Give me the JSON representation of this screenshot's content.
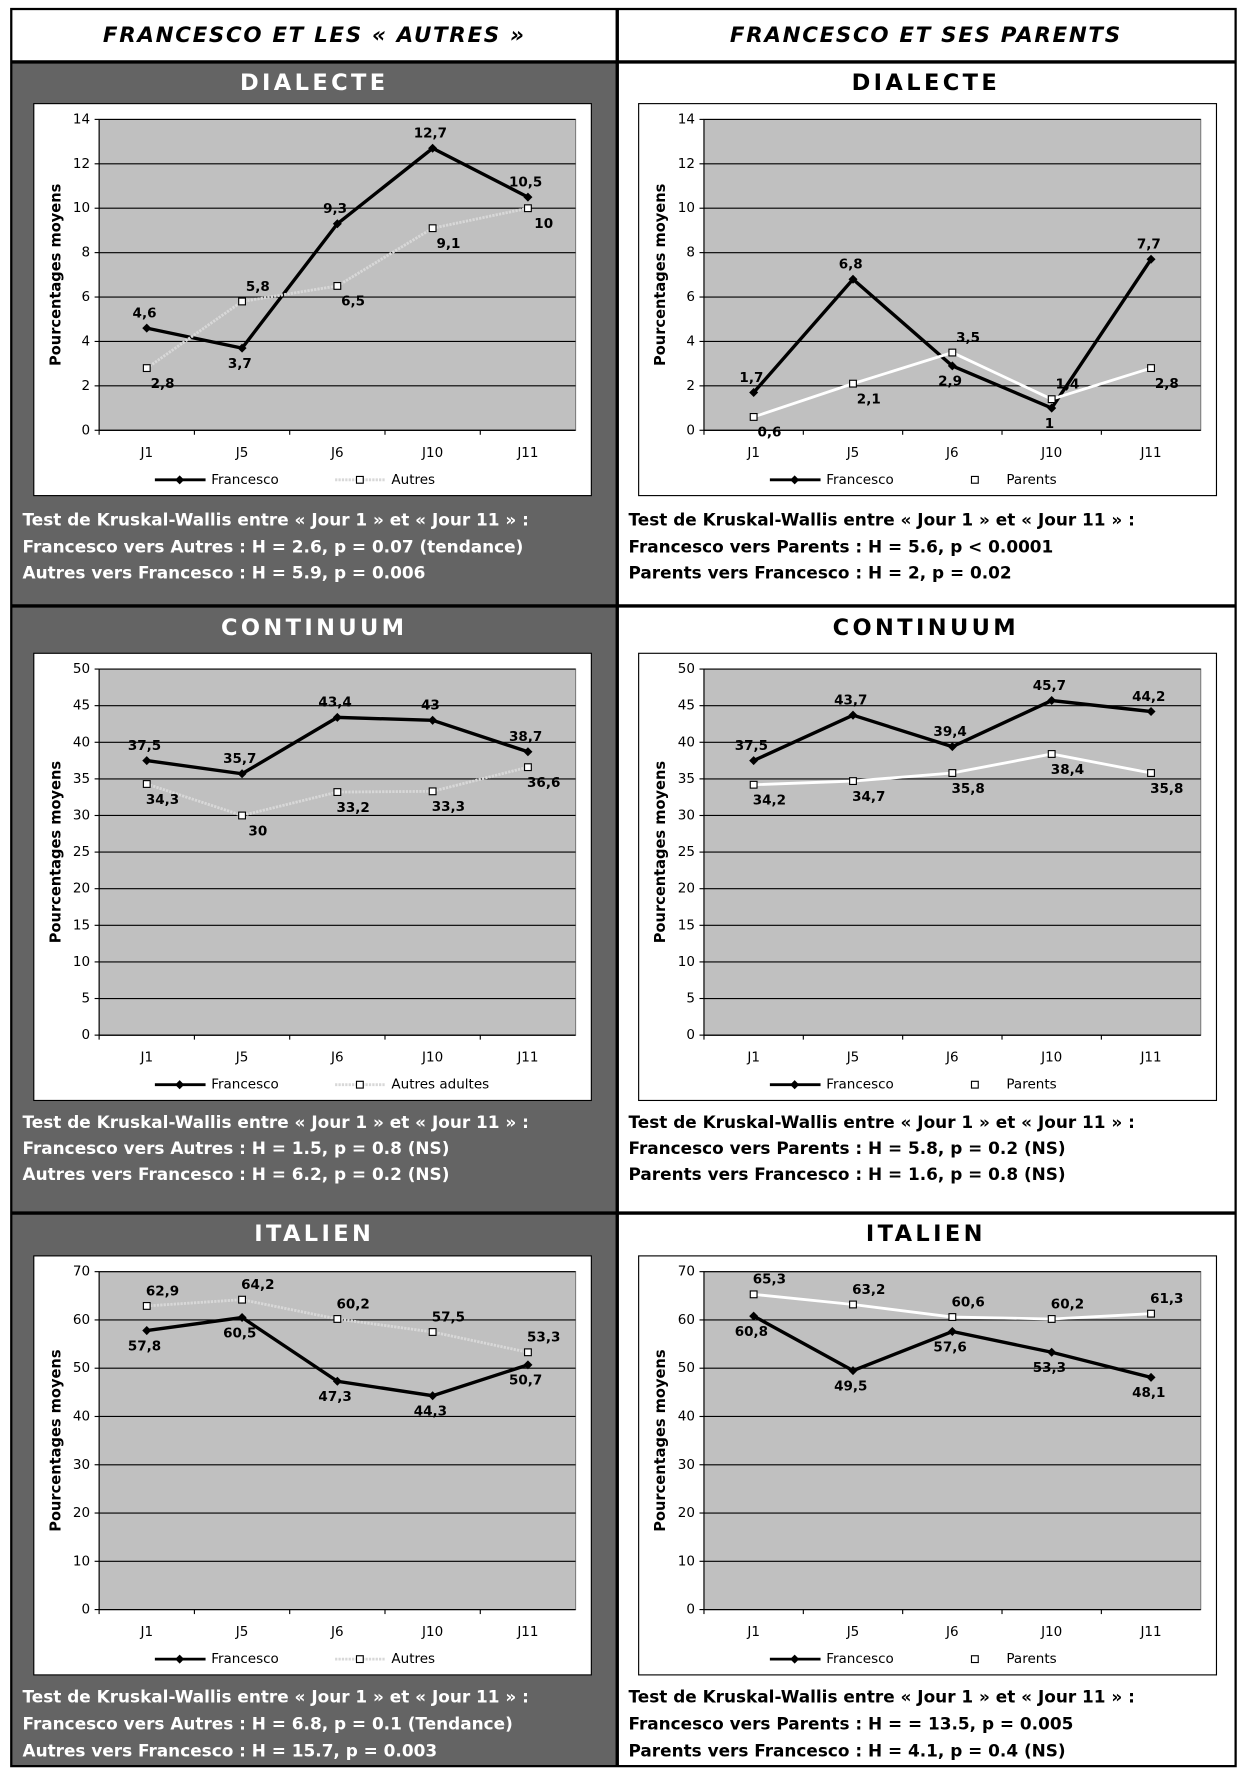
{
  "headers": [
    "FRANCESCO ET LES « AUTRES »",
    "FRANCESCO ET SES PARENTS"
  ],
  "chart_data": [
    {
      "type": "line",
      "title": "DIALECTE",
      "ylabel": "Pourcentages moyens",
      "categories": [
        "J1",
        "J5",
        "J6",
        "J10",
        "J11"
      ],
      "series": [
        {
          "name": "Francesco",
          "color": "#000000",
          "values": [
            4.6,
            3.7,
            9.3,
            12.7,
            10.5
          ],
          "value_labels": [
            "4,6",
            "3,7",
            "9,3",
            "12,7",
            "10,5"
          ]
        },
        {
          "name": "Autres",
          "color": "#d8d8d8",
          "linestyle": "dotted",
          "values": [
            2.8,
            5.8,
            6.5,
            9.1,
            10
          ],
          "value_labels": [
            "2,8",
            "5,8",
            "6,5",
            "9,1",
            "10"
          ]
        }
      ],
      "ylim": [
        0,
        14
      ],
      "yticks": [
        0,
        2,
        4,
        6,
        8,
        10,
        12,
        14
      ],
      "grid": true,
      "notes": [
        "Test de Kruskal-Wallis entre « Jour 1 » et « Jour 11 » :",
        "Francesco vers Autres : H = 2.6, p = 0.07 (tendance)",
        "Autres vers Francesco : H = 5.9, p = 0.006"
      ]
    },
    {
      "type": "line",
      "title": "CONTINUUM",
      "ylabel": "Pourcentages moyens",
      "categories": [
        "J1",
        "J5",
        "J6",
        "J10",
        "J11"
      ],
      "series": [
        {
          "name": "Francesco",
          "color": "#000000",
          "values": [
            37.5,
            35.7,
            43.4,
            43,
            38.7
          ],
          "value_labels": [
            "37,5",
            "35,7",
            "43,4",
            "43",
            "38,7"
          ]
        },
        {
          "name": "Autres adultes",
          "color": "#d8d8d8",
          "linestyle": "dotted",
          "values": [
            34.3,
            30,
            33.2,
            33.3,
            36.6
          ],
          "value_labels": [
            "34,3",
            "30",
            "33,2",
            "33,3",
            "36,6"
          ]
        }
      ],
      "ylim": [
        0,
        50
      ],
      "yticks": [
        0,
        5,
        10,
        15,
        20,
        25,
        30,
        35,
        40,
        45,
        50
      ],
      "grid": true,
      "notes": [
        "Test de Kruskal-Wallis entre « Jour 1 » et « Jour 11 » :",
        "Francesco vers Autres : H = 1.5, p = 0.8 (NS)",
        "Autres vers Francesco : H = 6.2, p = 0.2 (NS)"
      ]
    },
    {
      "type": "line",
      "title": "ITALIEN",
      "ylabel": "Pourcentages moyens",
      "categories": [
        "J1",
        "J5",
        "J6",
        "J10",
        "J11"
      ],
      "series": [
        {
          "name": "Francesco",
          "color": "#000000",
          "values": [
            57.8,
            60.5,
            47.3,
            44.3,
            50.7
          ],
          "value_labels": [
            "57,8",
            "60,5",
            "47,3",
            "44,3",
            "50,7"
          ]
        },
        {
          "name": "Autres",
          "color": "#d8d8d8",
          "linestyle": "dotted",
          "values": [
            62.9,
            64.2,
            60.2,
            57.5,
            53.3
          ],
          "value_labels": [
            "62,9",
            "64,2",
            "60,2",
            "57,5",
            "53,3"
          ]
        }
      ],
      "ylim": [
        0,
        70
      ],
      "yticks": [
        0,
        10,
        20,
        30,
        40,
        50,
        60,
        70
      ],
      "grid": true,
      "notes": [
        "Test de Kruskal-Wallis entre « Jour 1 » et « Jour 11 » :",
        "Francesco vers Autres : H = 6.8, p = 0.1 (Tendance)",
        "Autres vers Francesco : H = 15.7, p = 0.003"
      ]
    },
    {
      "type": "line",
      "title": "DIALECTE",
      "ylabel": "Pourcentages moyens",
      "categories": [
        "J1",
        "J5",
        "J6",
        "J10",
        "J11"
      ],
      "series": [
        {
          "name": "Francesco",
          "color": "#000000",
          "values": [
            1.7,
            6.8,
            2.9,
            1,
            7.7
          ],
          "value_labels": [
            "1,7",
            "6,8",
            "2,9",
            "1",
            "7,7"
          ]
        },
        {
          "name": "Parents",
          "color": "#ffffff",
          "values": [
            0.6,
            2.1,
            3.5,
            1.4,
            2.8
          ],
          "value_labels": [
            "0,6",
            "2,1",
            "3,5",
            "1,4",
            "2,8"
          ]
        }
      ],
      "ylim": [
        0,
        14
      ],
      "yticks": [
        0,
        2,
        4,
        6,
        8,
        10,
        12,
        14
      ],
      "grid": true,
      "notes": [
        "Test de Kruskal-Wallis entre « Jour 1 » et « Jour 11 » :",
        "Francesco vers Parents : H = 5.6, p < 0.0001",
        "Parents vers Francesco : H = 2, p = 0.02"
      ]
    },
    {
      "type": "line",
      "title": "CONTINUUM",
      "ylabel": "Pourcentages moyens",
      "categories": [
        "J1",
        "J5",
        "J6",
        "J10",
        "J11"
      ],
      "series": [
        {
          "name": "Francesco",
          "color": "#000000",
          "values": [
            37.5,
            43.7,
            39.4,
            45.7,
            44.2
          ],
          "value_labels": [
            "37,5",
            "43,7",
            "39,4",
            "45,7",
            "44,2"
          ]
        },
        {
          "name": "Parents",
          "color": "#ffffff",
          "values": [
            34.2,
            34.7,
            35.8,
            38.4,
            35.8
          ],
          "value_labels": [
            "34,2",
            "34,7",
            "35,8",
            "38,4",
            "35,8"
          ]
        }
      ],
      "ylim": [
        0,
        50
      ],
      "yticks": [
        0,
        5,
        10,
        15,
        20,
        25,
        30,
        35,
        40,
        45,
        50
      ],
      "grid": true,
      "notes": [
        "Test de Kruskal-Wallis entre « Jour 1 » et « Jour 11 » :",
        "Francesco vers Parents : H = 5.8, p = 0.2 (NS)",
        "Parents vers Francesco : H = 1.6, p = 0.8 (NS)"
      ]
    },
    {
      "type": "line",
      "title": "ITALIEN",
      "ylabel": "Pourcentages moyens",
      "categories": [
        "J1",
        "J5",
        "J6",
        "J10",
        "J11"
      ],
      "series": [
        {
          "name": "Francesco",
          "color": "#000000",
          "values": [
            60.8,
            49.5,
            57.6,
            53.3,
            48.1
          ],
          "value_labels": [
            "60,8",
            "49,5",
            "57,6",
            "53,3",
            "48,1"
          ]
        },
        {
          "name": "Parents",
          "color": "#ffffff",
          "values": [
            65.3,
            63.2,
            60.6,
            60.2,
            61.3
          ],
          "value_labels": [
            "65,3",
            "63,2",
            "60,6",
            "60,2",
            "61,3"
          ]
        }
      ],
      "ylim": [
        0,
        70
      ],
      "yticks": [
        0,
        10,
        20,
        30,
        40,
        50,
        60,
        70
      ],
      "grid": true,
      "notes": [
        "Test de Kruskal-Wallis entre « Jour 1 » et « Jour 11 » :",
        "Francesco vers Parents : H = = 13.5, p = 0.005",
        "Parents vers Francesco : H = 4.1, p = 0.4 (NS)"
      ]
    }
  ]
}
